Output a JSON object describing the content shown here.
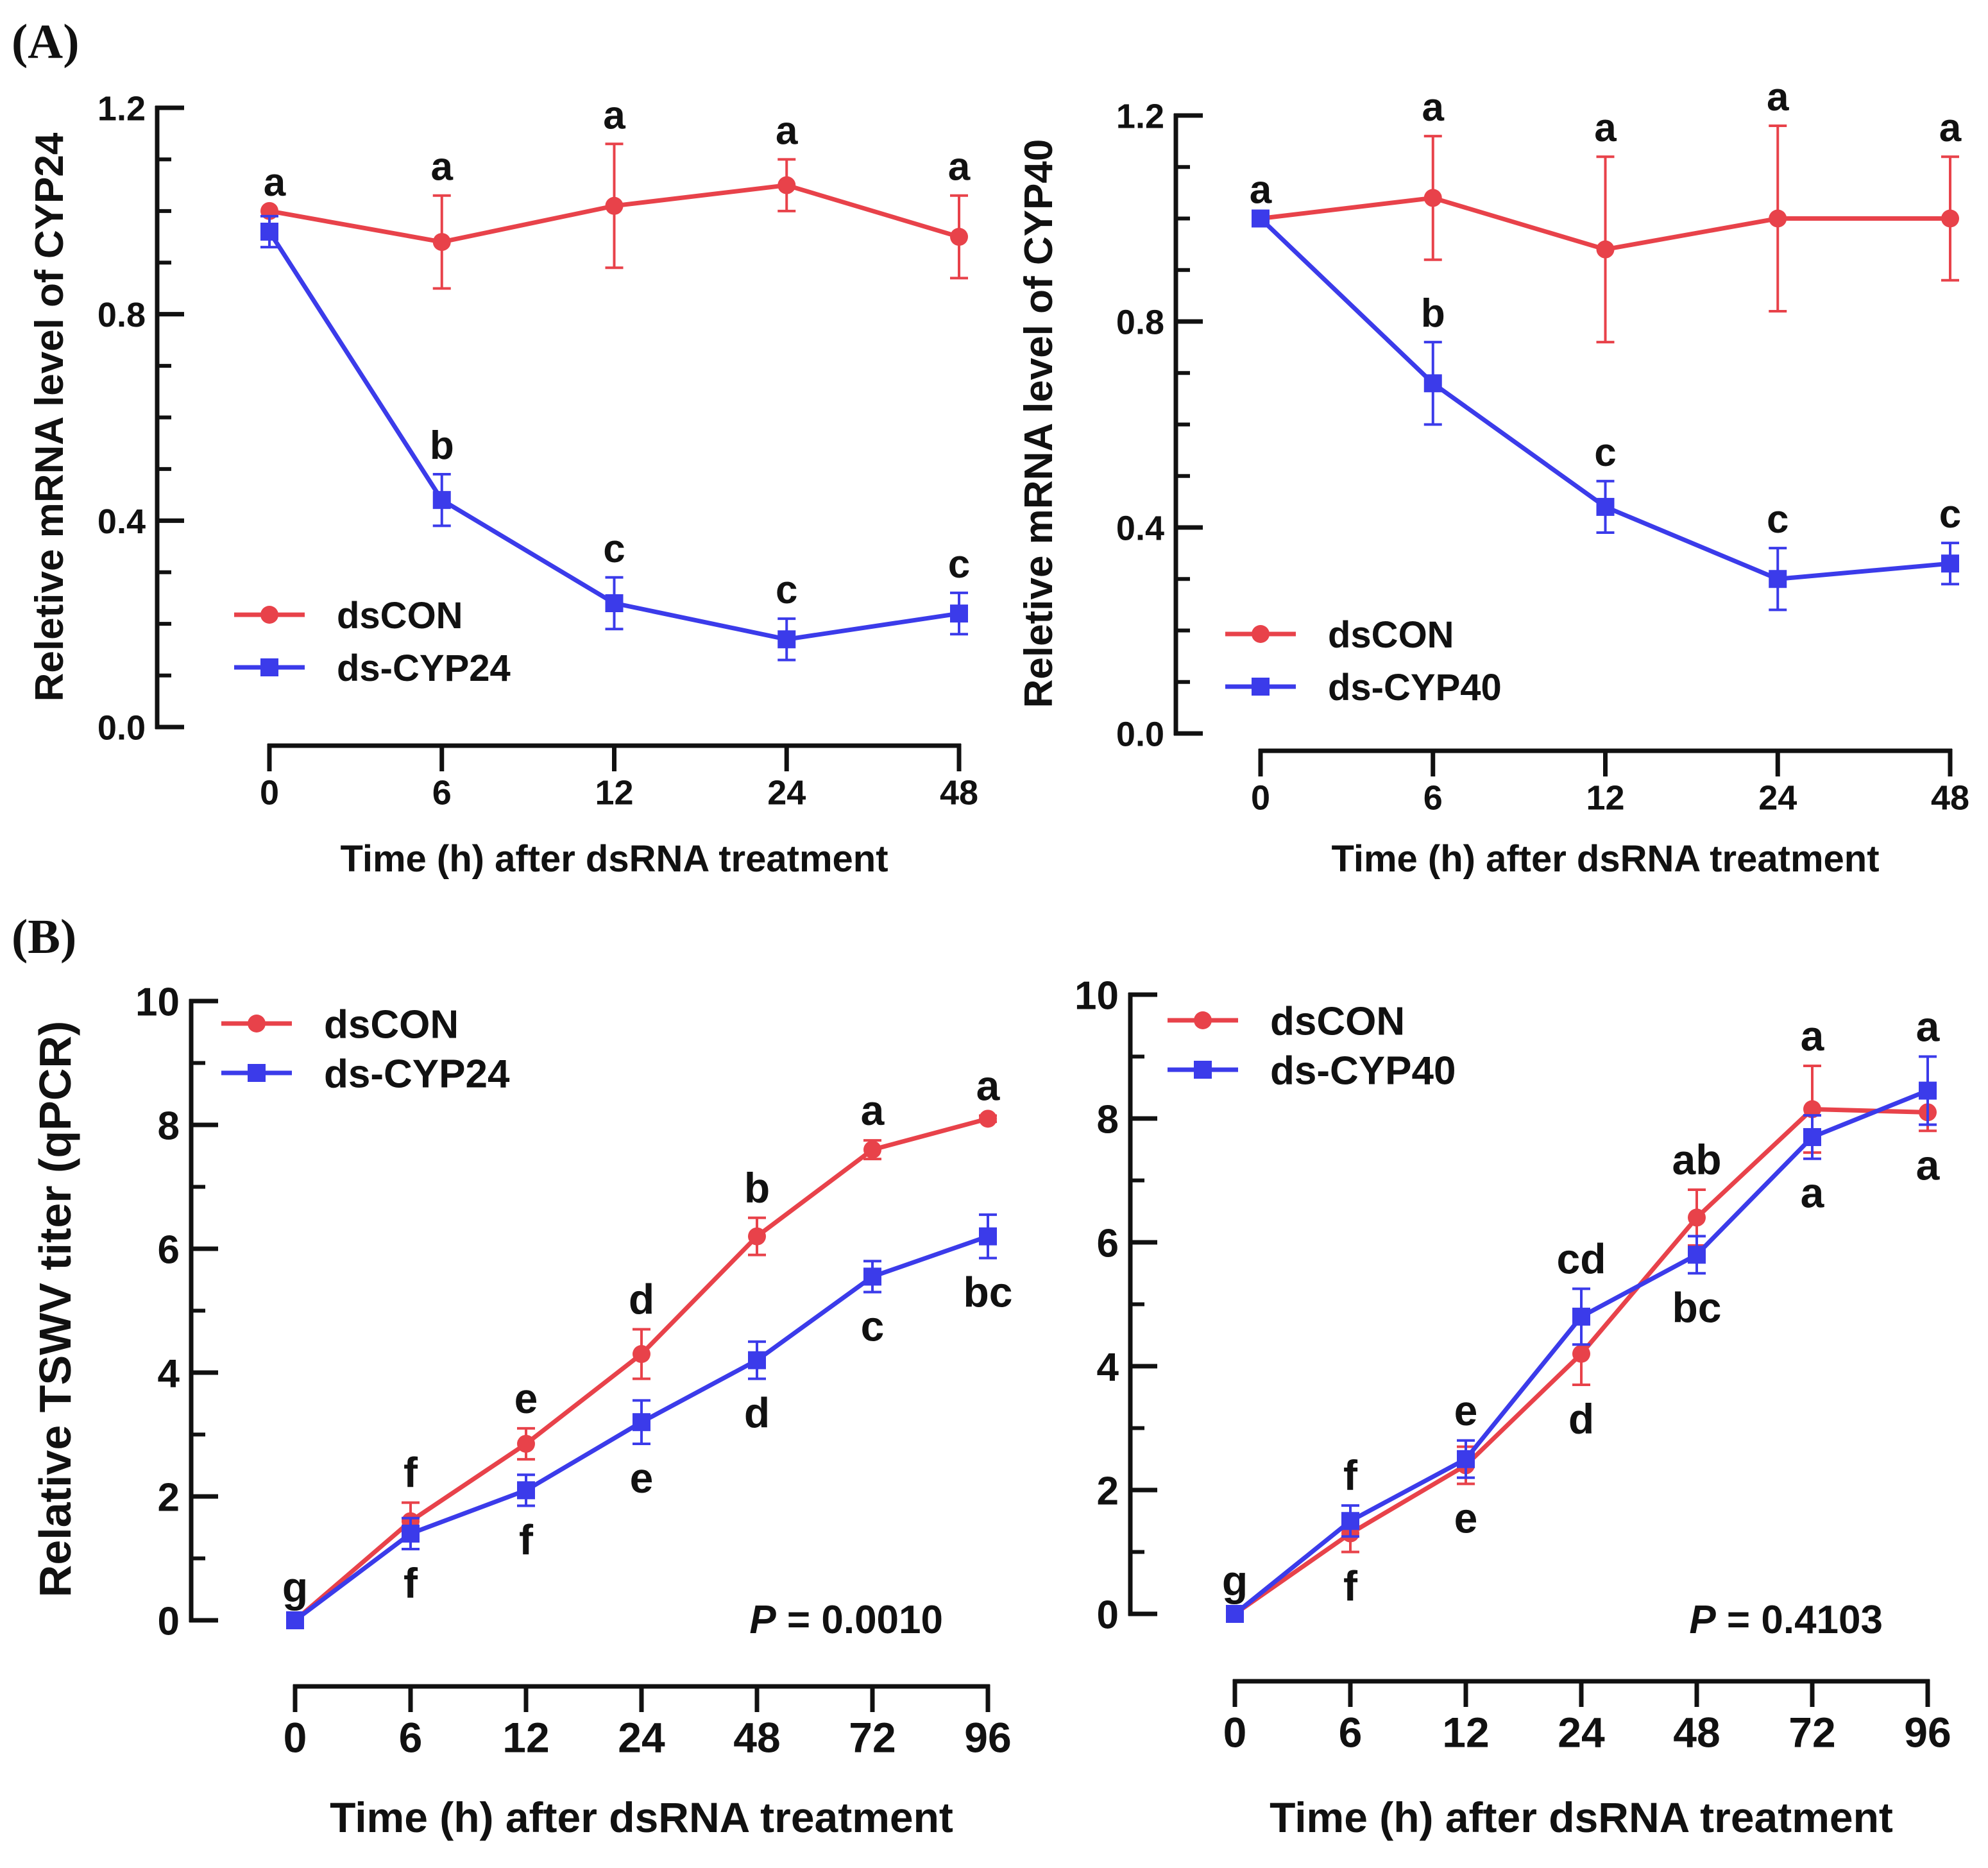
{
  "figure": {
    "panel_a_label": "(A)",
    "panel_b_label": "(B)"
  },
  "colors": {
    "dsCON": "#e8424a",
    "dsCYP": "#3b3bea",
    "axis": "#111111"
  },
  "chart_data": [
    {
      "id": "a1",
      "type": "line",
      "ylabel": "Reletive mRNA level of CYP24",
      "xlabel": "Time (h) after dsRNA treatment",
      "categories": [
        "0",
        "6",
        "12",
        "24",
        "48"
      ],
      "yticks": [
        "0.0",
        "0.4",
        "0.8",
        "1.2"
      ],
      "ylim": [
        0,
        1.2
      ],
      "legend": [
        "dsCON",
        "ds-CYP24"
      ],
      "series": [
        {
          "name": "dsCON",
          "values": [
            1.0,
            0.94,
            1.01,
            1.05,
            0.95
          ],
          "err": [
            0.0,
            0.09,
            0.12,
            0.05,
            0.08
          ],
          "letters": [
            "a",
            "a",
            "a",
            "a",
            "a"
          ]
        },
        {
          "name": "ds-CYP24",
          "values": [
            0.96,
            0.44,
            0.24,
            0.17,
            0.22
          ],
          "err": [
            0.03,
            0.05,
            0.05,
            0.04,
            0.04
          ],
          "letters": [
            "",
            "b",
            "c",
            "c",
            "c"
          ]
        }
      ]
    },
    {
      "id": "a2",
      "type": "line",
      "ylabel": "Reletive mRNA level of CYP40",
      "xlabel": "Time (h) after dsRNA treatment",
      "categories": [
        "0",
        "6",
        "12",
        "24",
        "48"
      ],
      "yticks": [
        "0.0",
        "0.4",
        "0.8",
        "1.2"
      ],
      "ylim": [
        0,
        1.2
      ],
      "legend": [
        "dsCON",
        "ds-CYP40"
      ],
      "series": [
        {
          "name": "dsCON",
          "values": [
            1.0,
            1.04,
            0.94,
            1.0,
            1.0
          ],
          "err": [
            0.0,
            0.12,
            0.18,
            0.18,
            0.12
          ],
          "letters": [
            "a",
            "a",
            "a",
            "a",
            "a"
          ]
        },
        {
          "name": "ds-CYP40",
          "values": [
            1.0,
            0.68,
            0.44,
            0.3,
            0.33
          ],
          "err": [
            0.0,
            0.08,
            0.05,
            0.06,
            0.04
          ],
          "letters": [
            "",
            "b",
            "c",
            "c",
            "c"
          ]
        }
      ]
    },
    {
      "id": "b1",
      "type": "line",
      "ylabel": "Relative TSWV titer (qPCR)",
      "xlabel": "Time (h) after dsRNA treatment",
      "categories": [
        "0",
        "6",
        "12",
        "24",
        "48",
        "72",
        "96"
      ],
      "yticks": [
        "0",
        "2",
        "4",
        "6",
        "8",
        "10"
      ],
      "ylim": [
        0,
        10
      ],
      "legend": [
        "dsCON",
        "ds-CYP24"
      ],
      "p_prefix": "P",
      "p_value": " = 0.0010",
      "series": [
        {
          "name": "dsCON",
          "values": [
            0.0,
            1.6,
            2.85,
            4.3,
            6.2,
            7.6,
            8.1
          ],
          "err": [
            0.05,
            0.3,
            0.25,
            0.4,
            0.3,
            0.15,
            0.05
          ],
          "letters": [
            "g",
            "f",
            "e",
            "d",
            "b",
            "a",
            "a"
          ]
        },
        {
          "name": "ds-CYP24",
          "values": [
            0.0,
            1.4,
            2.1,
            3.2,
            4.2,
            5.55,
            6.2
          ],
          "err": [
            0.05,
            0.25,
            0.25,
            0.35,
            0.3,
            0.25,
            0.35
          ],
          "letters": [
            "",
            "f",
            "f",
            "e",
            "d",
            "c",
            "bc"
          ]
        }
      ]
    },
    {
      "id": "b2",
      "type": "line",
      "ylabel": "",
      "xlabel": "Time (h) after dsRNA treatment",
      "categories": [
        "0",
        "6",
        "12",
        "24",
        "48",
        "72",
        "96"
      ],
      "yticks": [
        "0",
        "2",
        "4",
        "6",
        "8",
        "10"
      ],
      "ylim": [
        0,
        10
      ],
      "legend": [
        "dsCON",
        "ds-CYP40"
      ],
      "p_prefix": "P",
      "p_value": " = 0.4103",
      "series": [
        {
          "name": "dsCON",
          "values": [
            0.0,
            1.3,
            2.4,
            4.2,
            6.4,
            8.15,
            8.1
          ],
          "err": [
            0.05,
            0.3,
            0.3,
            0.5,
            0.45,
            0.7,
            0.3
          ],
          "letters": [
            "g",
            "f",
            "e",
            "d",
            "ab",
            "a",
            "a"
          ]
        },
        {
          "name": "ds-CYP40",
          "values": [
            0.0,
            1.5,
            2.5,
            4.8,
            5.8,
            7.7,
            8.45
          ],
          "err": [
            0.05,
            0.25,
            0.3,
            0.45,
            0.3,
            0.35,
            0.55
          ],
          "letters": [
            "",
            "f",
            "e",
            "cd",
            "bc",
            "a",
            "a"
          ]
        }
      ]
    }
  ]
}
